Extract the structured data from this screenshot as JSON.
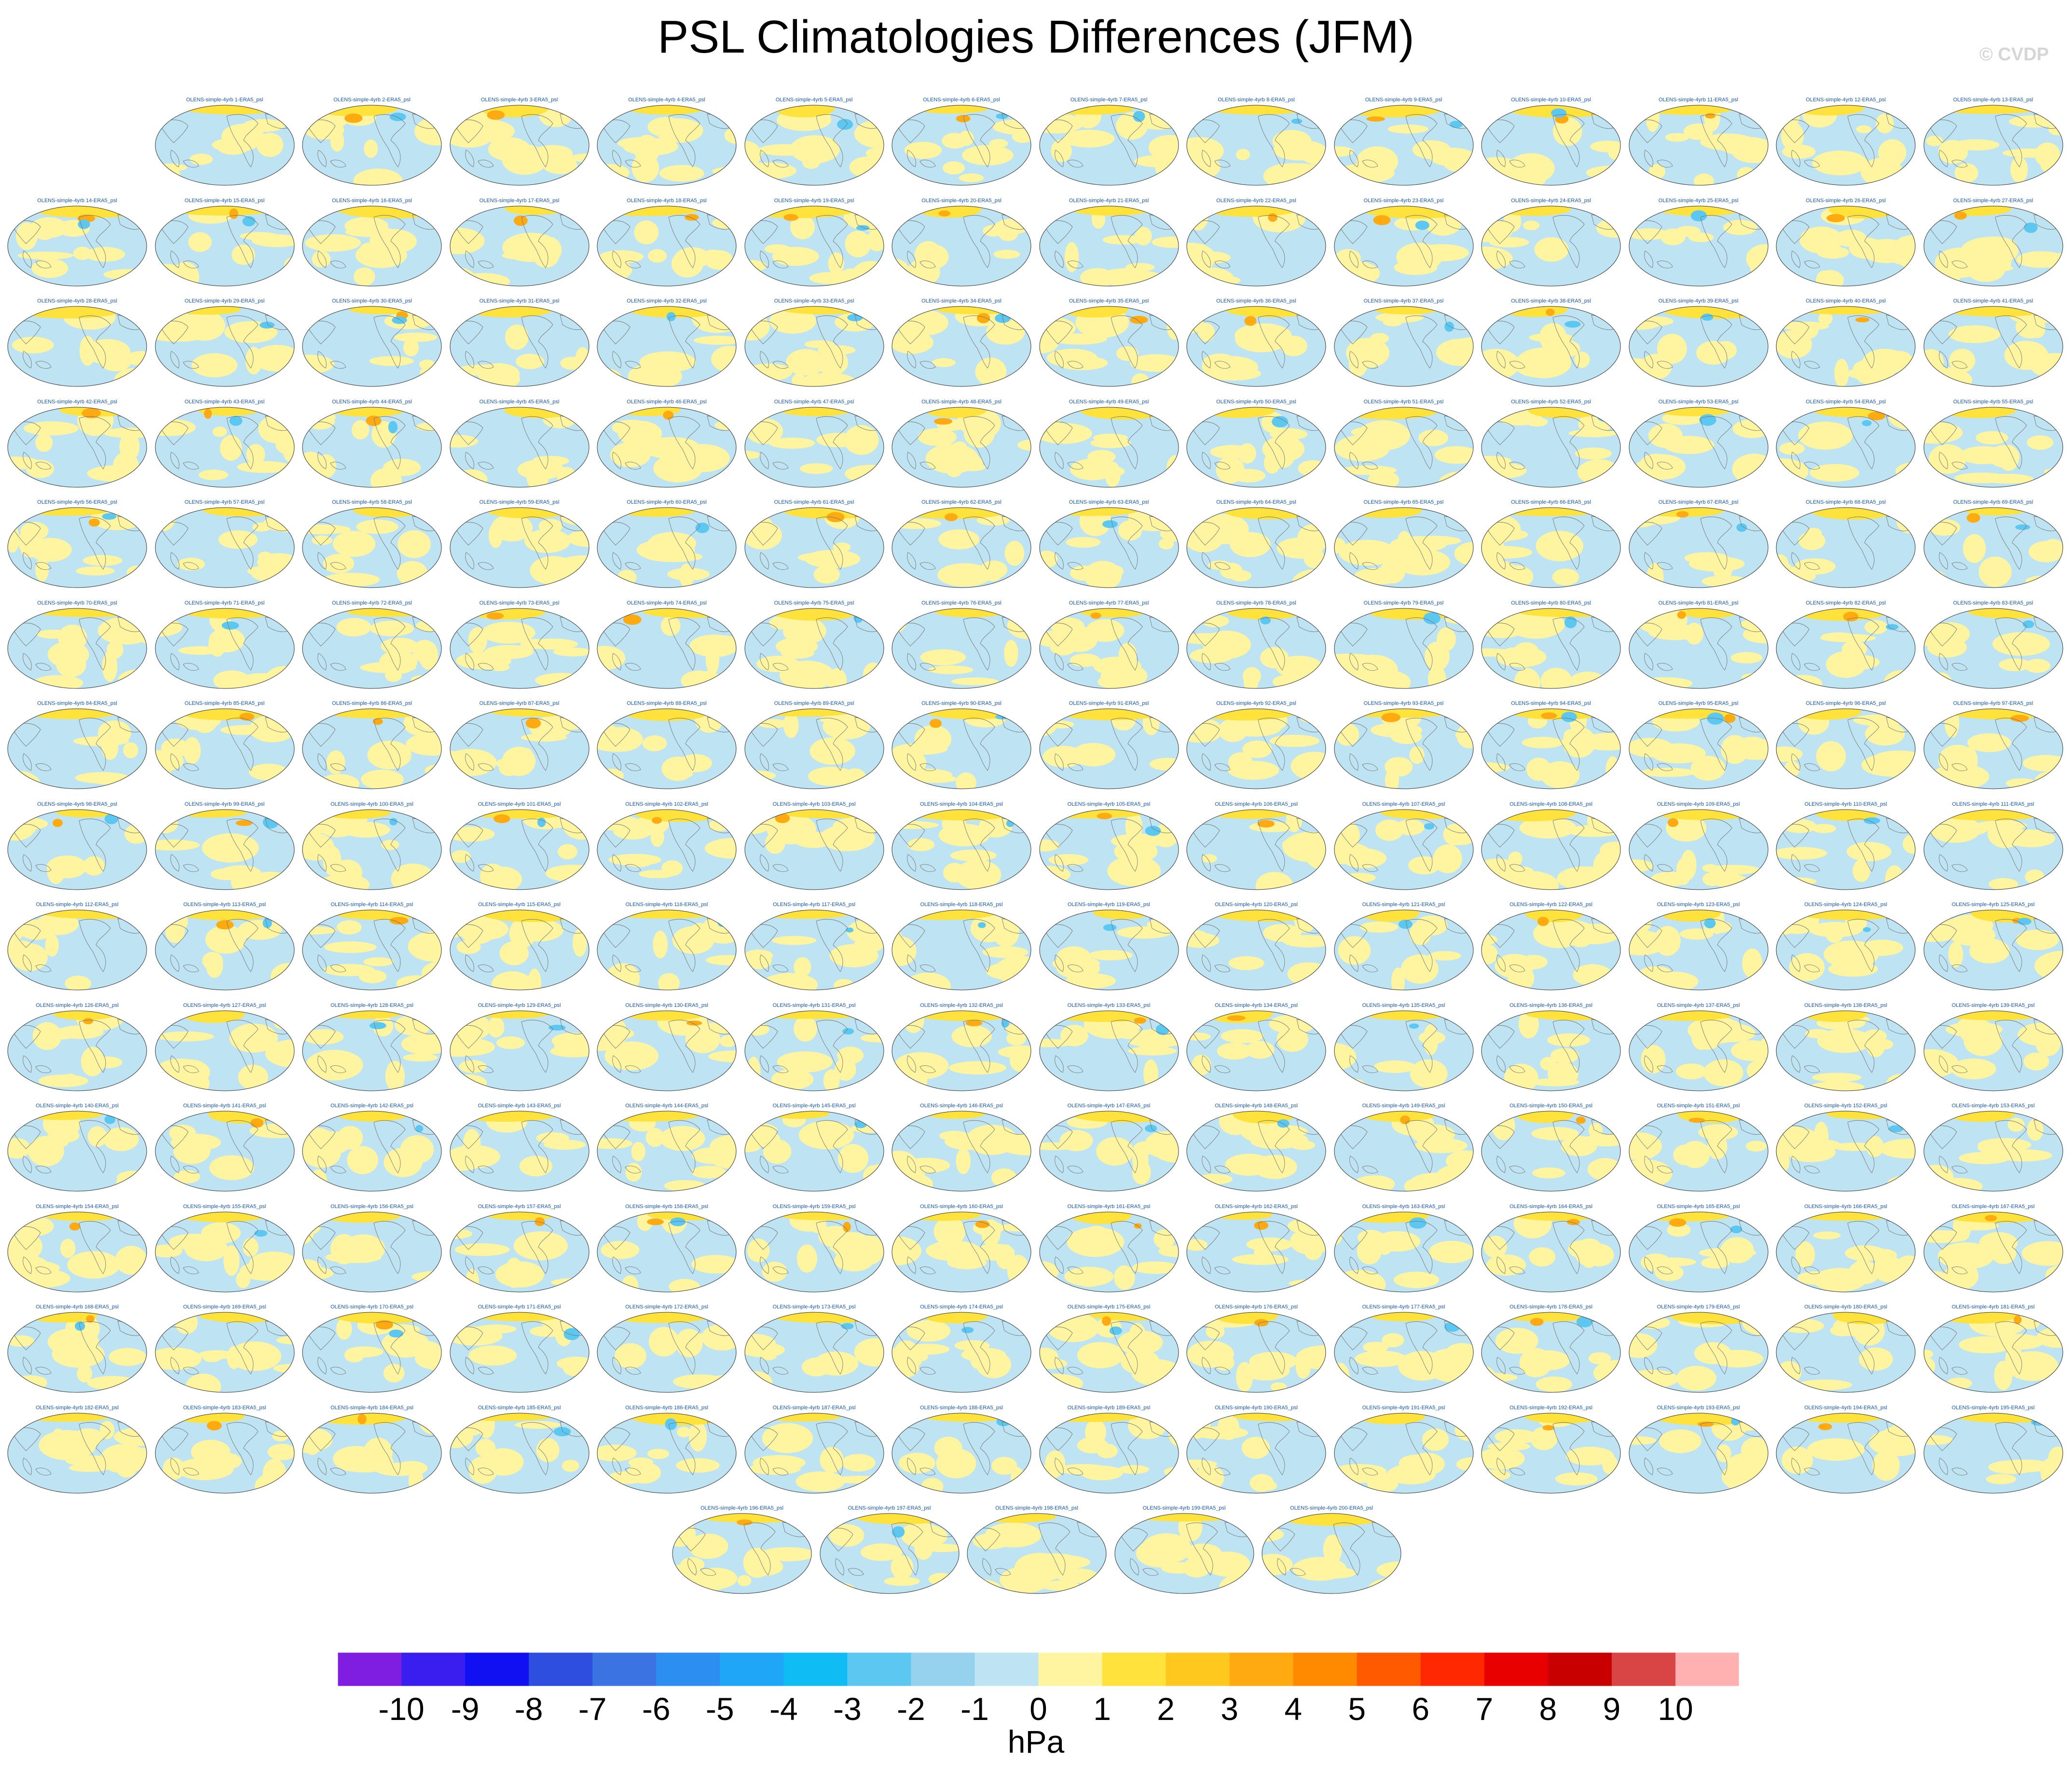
{
  "title": "PSL Climatologies Differences (JFM)",
  "copyright": "© CVDP",
  "chart_data": {
    "type": "heatmap",
    "title": "PSL Climatologies Differences (JFM)",
    "projection": "Robinson",
    "center_longitude": "Pacific-centered",
    "panel_count": 200,
    "panel_titles": [
      "OLENS-simple-4yrb 1-ERA5_psl",
      "OLENS-simple-4yrb 2-ERA5_psl",
      "OLENS-simple-4yrb 3-ERA5_psl",
      "OLENS-simple-4yrb 4-ERA5_psl",
      "OLENS-simple-4yrb 5-ERA5_psl",
      "OLENS-simple-4yrb 6-ERA5_psl",
      "OLENS-simple-4yrb 7-ERA5_psl",
      "OLENS-simple-4yrb 8-ERA5_psl",
      "OLENS-simple-4yrb 9-ERA5_psl",
      "OLENS-simple-4yrb 10-ERA5_psl",
      "OLENS-simple-4yrb 11-ERA5_psl",
      "OLENS-simple-4yrb 12-ERA5_psl",
      "OLENS-simple-4yrb 13-ERA5_psl",
      "OLENS-simple-4yrb 14-ERA5_psl",
      "OLENS-simple-4yrb 15-ERA5_psl",
      "OLENS-simple-4yrb 16-ERA5_psl",
      "OLENS-simple-4yrb 17-ERA5_psl",
      "OLENS-simple-4yrb 18-ERA5_psl",
      "OLENS-simple-4yrb 19-ERA5_psl",
      "OLENS-simple-4yrb 20-ERA5_psl",
      "OLENS-simple-4yrb 21-ERA5_psl",
      "OLENS-simple-4yrb 22-ERA5_psl",
      "OLENS-simple-4yrb 23-ERA5_psl",
      "OLENS-simple-4yrb 24-ERA5_psl",
      "OLENS-simple-4yrb 25-ERA5_psl",
      "OLENS-simple-4yrb 26-ERA5_psl",
      "OLENS-simple-4yrb 27-ERA5_psl",
      "OLENS-simple-4yrb 28-ERA5_psl",
      "OLENS-simple-4yrb 29-ERA5_psl",
      "OLENS-simple-4yrb 30-ERA5_psl",
      "OLENS-simple-4yrb 31-ERA5_psl",
      "OLENS-simple-4yrb 32-ERA5_psl",
      "OLENS-simple-4yrb 33-ERA5_psl",
      "OLENS-simple-4yrb 34-ERA5_psl",
      "OLENS-simple-4yrb 35-ERA5_psl",
      "OLENS-simple-4yrb 36-ERA5_psl",
      "OLENS-simple-4yrb 37-ERA5_psl",
      "OLENS-simple-4yrb 38-ERA5_psl",
      "OLENS-simple-4yrb 39-ERA5_psl",
      "OLENS-simple-4yrb 40-ERA5_psl",
      "OLENS-simple-4yrb 41-ERA5_psl",
      "OLENS-simple-4yrb 42-ERA5_psl",
      "OLENS-simple-4yrb 43-ERA5_psl",
      "OLENS-simple-4yrb 44-ERA5_psl",
      "OLENS-simple-4yrb 45-ERA5_psl",
      "OLENS-simple-4yrb 46-ERA5_psl",
      "OLENS-simple-4yrb 47-ERA5_psl",
      "OLENS-simple-4yrb 48-ERA5_psl",
      "OLENS-simple-4yrb 49-ERA5_psl",
      "OLENS-simple-4yrb 50-ERA5_psl",
      "OLENS-simple-4yrb 51-ERA5_psl",
      "OLENS-simple-4yrb 52-ERA5_psl",
      "OLENS-simple-4yrb 53-ERA5_psl",
      "OLENS-simple-4yrb 54-ERA5_psl",
      "OLENS-simple-4yrb 55-ERA5_psl",
      "OLENS-simple-4yrb 56-ERA5_psl",
      "OLENS-simple-4yrb 57-ERA5_psl",
      "OLENS-simple-4yrb 58-ERA5_psl",
      "OLENS-simple-4yrb 59-ERA5_psl",
      "OLENS-simple-4yrb 60-ERA5_psl",
      "OLENS-simple-4yrb 61-ERA5_psl",
      "OLENS-simple-4yrb 62-ERA5_psl",
      "OLENS-simple-4yrb 63-ERA5_psl",
      "OLENS-simple-4yrb 64-ERA5_psl",
      "OLENS-simple-4yrb 65-ERA5_psl",
      "OLENS-simple-4yrb 66-ERA5_psl",
      "OLENS-simple-4yrb 67-ERA5_psl",
      "OLENS-simple-4yrb 68-ERA5_psl",
      "OLENS-simple-4yrb 69-ERA5_psl",
      "OLENS-simple-4yrb 70-ERA5_psl",
      "OLENS-simple-4yrb 71-ERA5_psl",
      "OLENS-simple-4yrb 72-ERA5_psl",
      "OLENS-simple-4yrb 73-ERA5_psl",
      "OLENS-simple-4yrb 74-ERA5_psl",
      "OLENS-simple-4yrb 75-ERA5_psl",
      "OLENS-simple-4yrb 76-ERA5_psl",
      "OLENS-simple-4yrb 77-ERA5_psl",
      "OLENS-simple-4yrb 78-ERA5_psl",
      "OLENS-simple-4yrb 79-ERA5_psl",
      "OLENS-simple-4yrb 80-ERA5_psl",
      "OLENS-simple-4yrb 81-ERA5_psl",
      "OLENS-simple-4yrb 82-ERA5_psl",
      "OLENS-simple-4yrb 83-ERA5_psl",
      "OLENS-simple-4yrb 84-ERA5_psl",
      "OLENS-simple-4yrb 85-ERA5_psl",
      "OLENS-simple-4yrb 86-ERA5_psl",
      "OLENS-simple-4yrb 87-ERA5_psl",
      "OLENS-simple-4yrb 88-ERA5_psl",
      "OLENS-simple-4yrb 89-ERA5_psl",
      "OLENS-simple-4yrb 90-ERA5_psl",
      "OLENS-simple-4yrb 91-ERA5_psl",
      "OLENS-simple-4yrb 92-ERA5_psl",
      "OLENS-simple-4yrb 93-ERA5_psl",
      "OLENS-simple-4yrb 94-ERA5_psl",
      "OLENS-simple-4yrb 95-ERA5_psl",
      "OLENS-simple-4yrb 96-ERA5_psl",
      "OLENS-simple-4yrb 97-ERA5_psl",
      "OLENS-simple-4yrb 98-ERA5_psl",
      "OLENS-simple-4yrb 99-ERA5_psl",
      "OLENS-simple-4yrb 100-ERA5_psl",
      "OLENS-simple-4yrb 101-ERA5_psl",
      "OLENS-simple-4yrb 102-ERA5_psl",
      "OLENS-simple-4yrb 103-ERA5_psl",
      "OLENS-simple-4yrb 104-ERA5_psl",
      "OLENS-simple-4yrb 105-ERA5_psl",
      "OLENS-simple-4yrb 106-ERA5_psl",
      "OLENS-simple-4yrb 107-ERA5_psl",
      "OLENS-simple-4yrb 108-ERA5_psl",
      "OLENS-simple-4yrb 109-ERA5_psl",
      "OLENS-simple-4yrb 110-ERA5_psl",
      "OLENS-simple-4yrb 111-ERA5_psl",
      "OLENS-simple-4yrb 112-ERA5_psl",
      "OLENS-simple-4yrb 113-ERA5_psl",
      "OLENS-simple-4yrb 114-ERA5_psl",
      "OLENS-simple-4yrb 115-ERA5_psl",
      "OLENS-simple-4yrb 116-ERA5_psl",
      "OLENS-simple-4yrb 117-ERA5_psl",
      "OLENS-simple-4yrb 118-ERA5_psl",
      "OLENS-simple-4yrb 119-ERA5_psl",
      "OLENS-simple-4yrb 120-ERA5_psl",
      "OLENS-simple-4yrb 121-ERA5_psl",
      "OLENS-simple-4yrb 122-ERA5_psl",
      "OLENS-simple-4yrb 123-ERA5_psl",
      "OLENS-simple-4yrb 124-ERA5_psl",
      "OLENS-simple-4yrb 125-ERA5_psl",
      "OLENS-simple-4yrb 126-ERA5_psl",
      "OLENS-simple-4yrb 127-ERA5_psl",
      "OLENS-simple-4yrb 128-ERA5_psl",
      "OLENS-simple-4yrb 129-ERA5_psl",
      "OLENS-simple-4yrb 130-ERA5_psl",
      "OLENS-simple-4yrb 131-ERA5_psl",
      "OLENS-simple-4yrb 132-ERA5_psl",
      "OLENS-simple-4yrb 133-ERA5_psl",
      "OLENS-simple-4yrb 134-ERA5_psl",
      "OLENS-simple-4yrb 135-ERA5_psl",
      "OLENS-simple-4yrb 136-ERA5_psl",
      "OLENS-simple-4yrb 137-ERA5_psl",
      "OLENS-simple-4yrb 138-ERA5_psl",
      "OLENS-simple-4yrb 139-ERA5_psl",
      "OLENS-simple-4yrb 140-ERA5_psl",
      "OLENS-simple-4yrb 141-ERA5_psl",
      "OLENS-simple-4yrb 142-ERA5_psl",
      "OLENS-simple-4yrb 143-ERA5_psl",
      "OLENS-simple-4yrb 144-ERA5_psl",
      "OLENS-simple-4yrb 145-ERA5_psl",
      "OLENS-simple-4yrb 146-ERA5_psl",
      "OLENS-simple-4yrb 147-ERA5_psl",
      "OLENS-simple-4yrb 148-ERA5_psl",
      "OLENS-simple-4yrb 149-ERA5_psl",
      "OLENS-simple-4yrb 150-ERA5_psl",
      "OLENS-simple-4yrb 151-ERA5_psl",
      "OLENS-simple-4yrb 152-ERA5_psl",
      "OLENS-simple-4yrb 153-ERA5_psl",
      "OLENS-simple-4yrb 154-ERA5_psl",
      "OLENS-simple-4yrb 155-ERA5_psl",
      "OLENS-simple-4yrb 156-ERA5_psl",
      "OLENS-simple-4yrb 157-ERA5_psl",
      "OLENS-simple-4yrb 158-ERA5_psl",
      "OLENS-simple-4yrb 159-ERA5_psl",
      "OLENS-simple-4yrb 160-ERA5_psl",
      "OLENS-simple-4yrb 161-ERA5_psl",
      "OLENS-simple-4yrb 162-ERA5_psl",
      "OLENS-simple-4yrb 163-ERA5_psl",
      "OLENS-simple-4yrb 164-ERA5_psl",
      "OLENS-simple-4yrb 165-ERA5_psl",
      "OLENS-simple-4yrb 166-ERA5_psl",
      "OLENS-simple-4yrb 167-ERA5_psl",
      "OLENS-simple-4yrb 168-ERA5_psl",
      "OLENS-simple-4yrb 169-ERA5_psl",
      "OLENS-simple-4yrb 170-ERA5_psl",
      "OLENS-simple-4yrb 171-ERA5_psl",
      "OLENS-simple-4yrb 172-ERA5_psl",
      "OLENS-simple-4yrb 173-ERA5_psl",
      "OLENS-simple-4yrb 174-ERA5_psl",
      "OLENS-simple-4yrb 175-ERA5_psl",
      "OLENS-simple-4yrb 176-ERA5_psl",
      "OLENS-simple-4yrb 177-ERA5_psl",
      "OLENS-simple-4yrb 178-ERA5_psl",
      "OLENS-simple-4yrb 179-ERA5_psl",
      "OLENS-simple-4yrb 180-ERA5_psl",
      "OLENS-simple-4yrb 181-ERA5_psl",
      "OLENS-simple-4yrb 182-ERA5_psl",
      "OLENS-simple-4yrb 183-ERA5_psl",
      "OLENS-simple-4yrb 184-ERA5_psl",
      "OLENS-simple-4yrb 185-ERA5_psl",
      "OLENS-simple-4yrb 186-ERA5_psl",
      "OLENS-simple-4yrb 187-ERA5_psl",
      "OLENS-simple-4yrb 188-ERA5_psl",
      "OLENS-simple-4yrb 189-ERA5_psl",
      "OLENS-simple-4yrb 190-ERA5_psl",
      "OLENS-simple-4yrb 191-ERA5_psl",
      "OLENS-simple-4yrb 192-ERA5_psl",
      "OLENS-simple-4yrb 193-ERA5_psl",
      "OLENS-simple-4yrb 194-ERA5_psl",
      "OLENS-simple-4yrb 195-ERA5_psl",
      "OLENS-simple-4yrb 196-ERA5_psl",
      "OLENS-simple-4yrb 197-ERA5_psl",
      "OLENS-simple-4yrb 198-ERA5_psl",
      "OLENS-simple-4yrb 199-ERA5_psl",
      "OLENS-simple-4yrb 200-ERA5_psl"
    ],
    "colorbar": {
      "label": "hPa",
      "ticks": [
        "-10",
        "-9",
        "-8",
        "-7",
        "-6",
        "-5",
        "-4",
        "-3",
        "-2",
        "-1",
        "0",
        "1",
        "2",
        "3",
        "4",
        "5",
        "6",
        "7",
        "8",
        "9",
        "10"
      ],
      "colors": [
        "#7f1ee0",
        "#3a1ef0",
        "#1010f2",
        "#2e4ee0",
        "#3b74e2",
        "#2b8ef0",
        "#20a6f6",
        "#10bcf4",
        "#5cc8f2",
        "#96d2ee",
        "#bee3f2",
        "#fff5a0",
        "#ffe23c",
        "#ffc81e",
        "#ffaa10",
        "#ff8a00",
        "#ff5a00",
        "#ff2800",
        "#e80000",
        "#c80000",
        "#d94444",
        "#ffb0b0"
      ]
    },
    "ocean_color": "#bee3f2",
    "positive_fill_color": "#fff5a0",
    "coastline_color": "#777777"
  },
  "units": "hPa"
}
